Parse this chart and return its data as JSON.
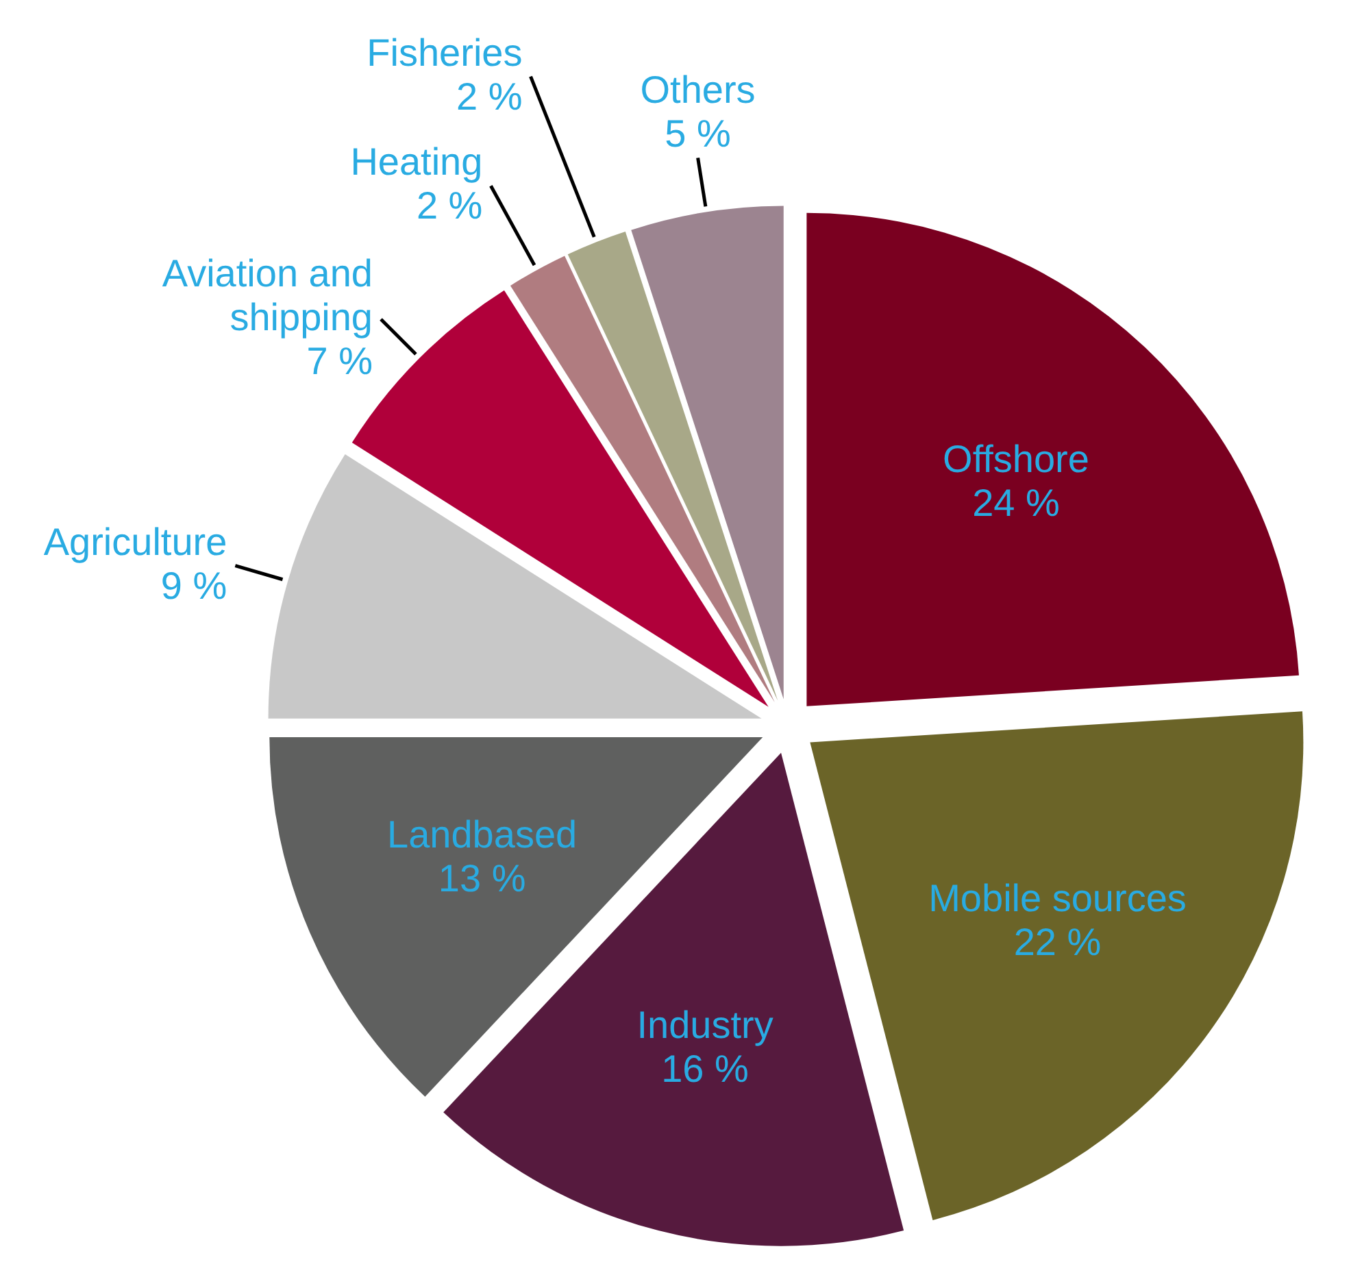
{
  "chart_data": {
    "type": "pie",
    "categories": [
      "Offshore",
      "Mobile sources",
      "Industry",
      "Landbased",
      "Agriculture",
      "Aviation and shipping",
      "Heating",
      "Fisheries",
      "Others"
    ],
    "values": [
      24,
      22,
      16,
      13,
      9,
      7,
      2,
      2,
      5
    ],
    "colors": [
      "#7a0020",
      "#6b6428",
      "#561a3e",
      "#5f605f",
      "#c8c8c8",
      "#b0003a",
      "#b07c80",
      "#a8a888",
      "#9c8490"
    ],
    "value_labels": [
      "24 %",
      "22 %",
      "16 %",
      "13 %",
      "9 %",
      "7 %",
      "2 %",
      "2 %",
      "5 %"
    ]
  }
}
